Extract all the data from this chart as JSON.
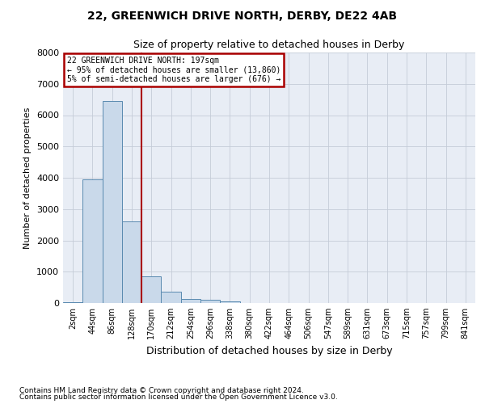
{
  "title1": "22, GREENWICH DRIVE NORTH, DERBY, DE22 4AB",
  "title2": "Size of property relative to detached houses in Derby",
  "xlabel": "Distribution of detached houses by size in Derby",
  "ylabel": "Number of detached properties",
  "footnote1": "Contains HM Land Registry data © Crown copyright and database right 2024.",
  "footnote2": "Contains public sector information licensed under the Open Government Licence v3.0.",
  "bar_labels": [
    "2sqm",
    "44sqm",
    "86sqm",
    "128sqm",
    "170sqm",
    "212sqm",
    "254sqm",
    "296sqm",
    "338sqm",
    "380sqm",
    "422sqm",
    "464sqm",
    "506sqm",
    "547sqm",
    "589sqm",
    "631sqm",
    "673sqm",
    "715sqm",
    "757sqm",
    "799sqm",
    "841sqm"
  ],
  "bar_values": [
    25,
    3950,
    6450,
    2600,
    850,
    350,
    130,
    100,
    60,
    0,
    0,
    0,
    0,
    0,
    0,
    0,
    0,
    0,
    0,
    0,
    0
  ],
  "bar_color": "#c9d9ea",
  "bar_edge_color": "#5a8ab0",
  "ylim": [
    0,
    8000
  ],
  "yticks": [
    0,
    1000,
    2000,
    3000,
    4000,
    5000,
    6000,
    7000,
    8000
  ],
  "property_line_x": 3.5,
  "property_line_color": "#aa0000",
  "annotation_line1": "22 GREENWICH DRIVE NORTH: 197sqm",
  "annotation_line2": "← 95% of detached houses are smaller (13,860)",
  "annotation_line3": "5% of semi-detached houses are larger (676) →",
  "annotation_box_facecolor": "#ffffff",
  "annotation_box_edgecolor": "#aa0000",
  "plot_bg_color": "#e8edf5",
  "grid_color": "#c5ccd8",
  "fig_width": 6.0,
  "fig_height": 5.0,
  "dpi": 100
}
